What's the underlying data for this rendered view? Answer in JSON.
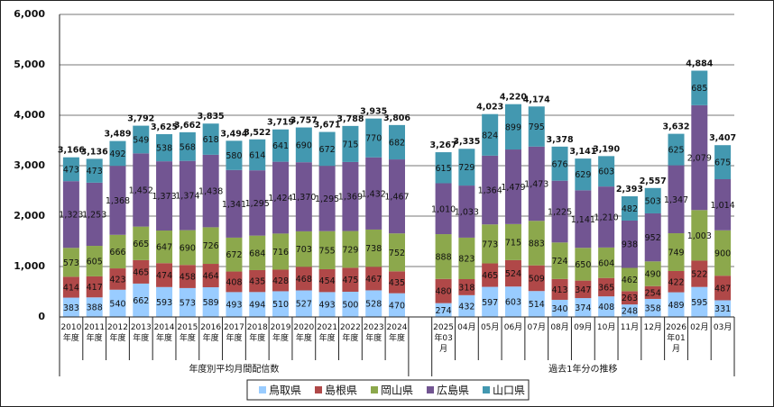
{
  "chart_data": {
    "type": "bar",
    "stacked": true,
    "title": "",
    "xlabel": "",
    "ylabel": "",
    "ylim": [
      0,
      6000
    ],
    "yticks": [
      0,
      1000,
      2000,
      3000,
      4000,
      5000,
      6000
    ],
    "ytick_labels": [
      "0",
      "1,000",
      "2,000",
      "3,000",
      "4,000",
      "5,000",
      "6,000"
    ],
    "grid": true,
    "legend_position": "bottom",
    "categories": [
      "2010年度",
      "2011年度",
      "2012年度",
      "2013年度",
      "2014年度",
      "2015年度",
      "2016年度",
      "2017年度",
      "2018年度",
      "2019年度",
      "2020年度",
      "2021年度",
      "2022年度",
      "2023年度",
      "2024年度",
      "",
      "2025年03月",
      "04月",
      "05月",
      "06月",
      "07月",
      "08月",
      "09月",
      "10月",
      "11月",
      "12月",
      "2026年01月",
      "02月",
      "03月"
    ],
    "groups": [
      {
        "label": "年度別平均月間配信数",
        "from": 0,
        "to": 14
      },
      {
        "label": "過去1年分の推移",
        "from": 16,
        "to": 28
      }
    ],
    "series": [
      {
        "name": "鳥取県",
        "color": "#99CCFF",
        "values": [
          383,
          388,
          540,
          662,
          593,
          573,
          589,
          493,
          494,
          510,
          527,
          493,
          500,
          528,
          470,
          null,
          274,
          432,
          597,
          603,
          514,
          340,
          374,
          408,
          248,
          358,
          489,
          595,
          331
        ]
      },
      {
        "name": "島根県",
        "color": "#B04848",
        "values": [
          414,
          417,
          423,
          465,
          474,
          458,
          464,
          408,
          435,
          428,
          468,
          454,
          475,
          467,
          435,
          null,
          480,
          318,
          465,
          524,
          509,
          413,
          347,
          365,
          263,
          254,
          422,
          522,
          487
        ]
      },
      {
        "name": "岡山県",
        "color": "#8CA84C",
        "values": [
          573,
          605,
          666,
          665,
          647,
          690,
          726,
          672,
          684,
          716,
          703,
          755,
          729,
          738,
          752,
          null,
          888,
          823,
          773,
          715,
          883,
          724,
          650,
          604,
          462,
          490,
          749,
          1003,
          900
        ]
      },
      {
        "name": "広島県",
        "color": "#725592",
        "values": [
          1323,
          1253,
          1368,
          1452,
          1373,
          1374,
          1438,
          1341,
          1295,
          1424,
          1370,
          1295,
          1369,
          1432,
          1467,
          null,
          1010,
          1033,
          1364,
          1479,
          1473,
          1225,
          1141,
          1210,
          938,
          952,
          1347,
          2079,
          1014
        ]
      },
      {
        "name": "山口県",
        "color": "#4398B0",
        "values": [
          473,
          473,
          492,
          549,
          538,
          568,
          618,
          580,
          614,
          641,
          690,
          672,
          715,
          770,
          682,
          null,
          615,
          729,
          824,
          899,
          795,
          676,
          629,
          603,
          482,
          503,
          625,
          685,
          675
        ]
      }
    ],
    "totals": [
      "3,166",
      "3,136",
      "3,489",
      "3,792",
      "3,625",
      "3,662",
      "3,835",
      "3,494",
      "3,522",
      "3,719",
      "3,757",
      "3,671",
      "3,788",
      "3,935",
      "3,806",
      null,
      "3,267",
      "3,335",
      "4,023",
      "4,220",
      "4,174",
      "3,378",
      "3,141",
      "3,190",
      "2,393",
      "2,557",
      "3,632",
      "4,884",
      "3,407"
    ]
  }
}
